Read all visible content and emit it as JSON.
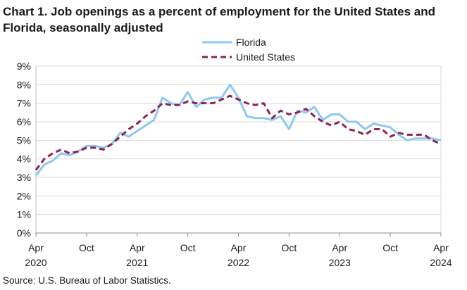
{
  "chart_data": {
    "type": "line",
    "title_lines": [
      "Chart 1. Job openings as a percent of employment for the United States and",
      "Florida, seasonally adjusted"
    ],
    "source": "Source: U.S. Bureau of Labor Statistics.",
    "ylim": [
      0,
      9
    ],
    "y_ticks": [
      0,
      1,
      2,
      3,
      4,
      5,
      6,
      7,
      8,
      9
    ],
    "y_tick_suffix": "%",
    "x_ticks": [
      {
        "index": 0,
        "label": "Apr",
        "year": "2020"
      },
      {
        "index": 6,
        "label": "Oct",
        "year": ""
      },
      {
        "index": 12,
        "label": "Apr",
        "year": "2021"
      },
      {
        "index": 18,
        "label": "Oct",
        "year": ""
      },
      {
        "index": 24,
        "label": "Apr",
        "year": "2022"
      },
      {
        "index": 30,
        "label": "Oct",
        "year": ""
      },
      {
        "index": 36,
        "label": "Apr",
        "year": "2023"
      },
      {
        "index": 42,
        "label": "Oct",
        "year": ""
      },
      {
        "index": 48,
        "label": "Apr",
        "year": "2024"
      }
    ],
    "x_start": "Apr 2020",
    "x_end": "Apr 2024",
    "series": [
      {
        "name": "Florida",
        "color": "#8fc8f2",
        "style": "solid",
        "values": [
          3.1,
          3.7,
          3.9,
          4.3,
          4.2,
          4.4,
          4.7,
          4.7,
          4.6,
          4.8,
          5.4,
          5.2,
          5.5,
          5.8,
          6.1,
          7.3,
          7.0,
          6.9,
          7.6,
          6.8,
          7.2,
          7.3,
          7.3,
          8.0,
          7.3,
          6.3,
          6.2,
          6.2,
          6.1,
          6.3,
          5.6,
          6.6,
          6.5,
          6.8,
          6.1,
          6.4,
          6.4,
          6.0,
          6.0,
          5.6,
          5.9,
          5.8,
          5.7,
          5.3,
          5.0,
          5.1,
          5.1,
          5.1,
          5.0
        ]
      },
      {
        "name": "United States",
        "color": "#8b2452",
        "style": "dashed",
        "values": [
          3.4,
          4.0,
          4.3,
          4.5,
          4.3,
          4.4,
          4.6,
          4.6,
          4.5,
          4.8,
          5.2,
          5.6,
          5.9,
          6.3,
          6.6,
          7.0,
          6.9,
          6.9,
          7.1,
          7.0,
          7.0,
          7.0,
          7.2,
          7.4,
          7.2,
          7.0,
          6.9,
          7.0,
          6.2,
          6.6,
          6.4,
          6.5,
          6.7,
          6.3,
          6.0,
          5.8,
          6.0,
          5.6,
          5.5,
          5.3,
          5.6,
          5.6,
          5.2,
          5.4,
          5.3,
          5.3,
          5.3,
          5.0,
          4.8
        ]
      }
    ]
  }
}
